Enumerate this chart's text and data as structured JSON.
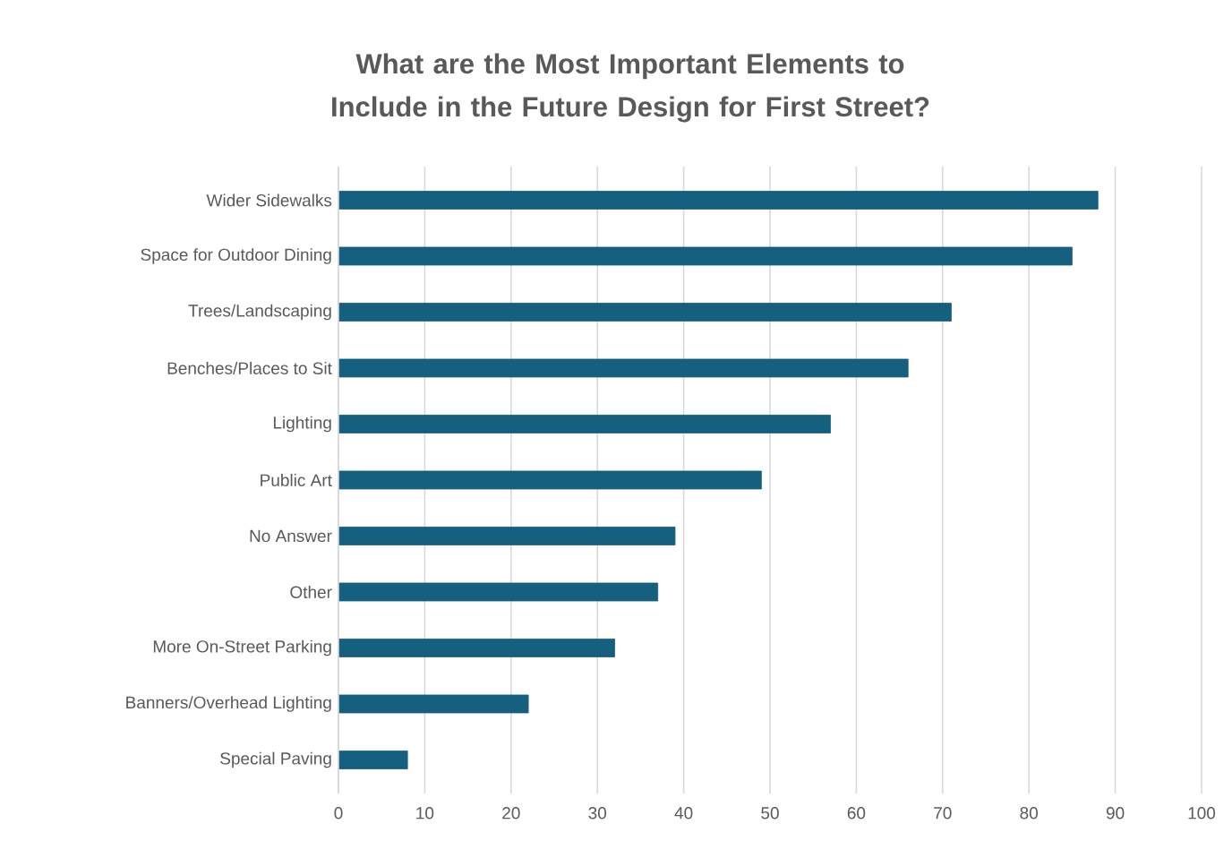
{
  "chart_data": {
    "type": "bar",
    "orientation": "horizontal",
    "title": "What are the Most Important Elements to Include in the Future Design for First Street?",
    "categories": [
      "Wider Sidewalks",
      "Space for Outdoor Dining",
      "Trees/Landscaping",
      "Benches/Places to Sit",
      "Lighting",
      "Public Art",
      "No Answer",
      "Other",
      "More On-Street Parking",
      "Banners/Overhead Lighting",
      "Special Paving"
    ],
    "values": [
      88,
      85,
      71,
      66,
      57,
      49,
      39,
      37,
      32,
      22,
      8
    ],
    "color": "#155f7f",
    "xlim": [
      0,
      100
    ],
    "xticks": [
      0,
      10,
      20,
      30,
      40,
      50,
      60,
      70,
      80,
      90,
      100
    ],
    "grid": "x"
  }
}
